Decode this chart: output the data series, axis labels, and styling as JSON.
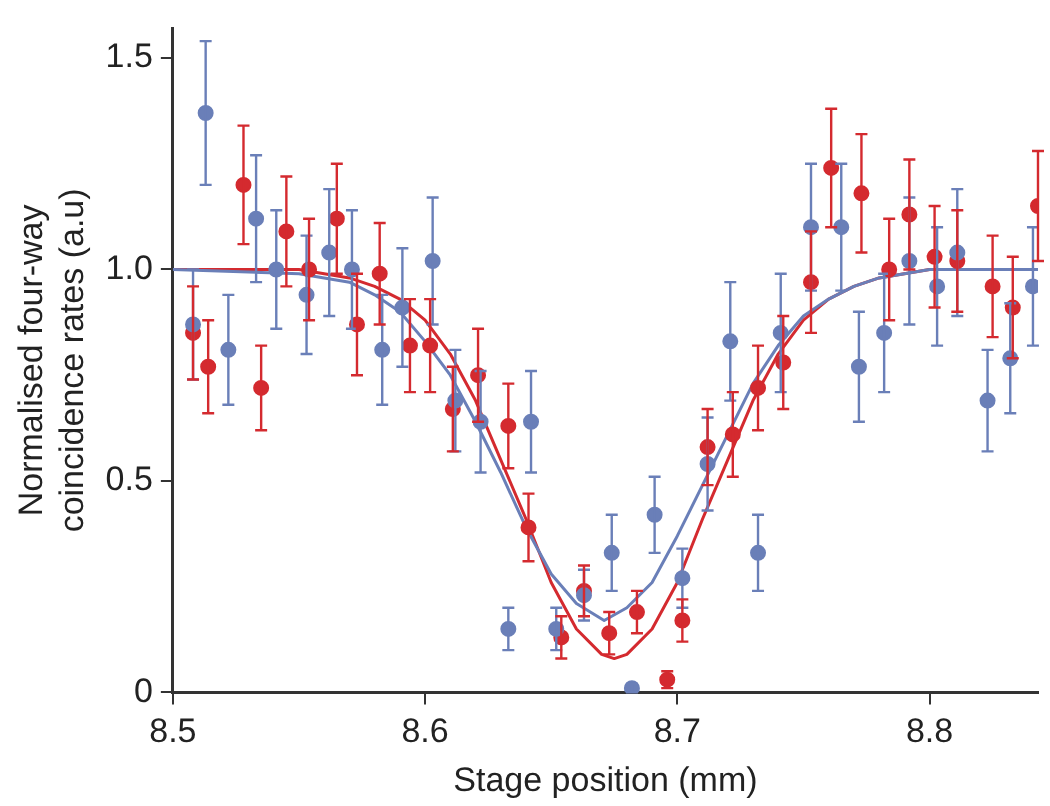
{
  "chart_data": {
    "type": "scatter",
    "xlabel": "Stage position (mm)",
    "ylabel": "Normalised four-way coincidence rates (a.u)",
    "xlim": [
      8.5,
      8.843
    ],
    "ylim": [
      0,
      1.57
    ],
    "xticks": [
      8.5,
      8.6,
      8.7,
      8.8
    ],
    "yticks": [
      0,
      0.5,
      {
        "value": 1,
        "label": "1.0"
      },
      1.5
    ],
    "grid": false,
    "legend": false,
    "marker": "circle",
    "series": [
      {
        "type": "scatter",
        "color": "#6a7fb8",
        "x": [
          8.508,
          8.513,
          8.522,
          8.533,
          8.541,
          8.553,
          8.562,
          8.571,
          8.583,
          8.591,
          8.603,
          8.612,
          8.622,
          8.633,
          8.642,
          8.652,
          8.663,
          8.674,
          8.682,
          8.691,
          8.702,
          8.712,
          8.721,
          8.732,
          8.741,
          8.753,
          8.765,
          8.772,
          8.782,
          8.792,
          8.803,
          8.811,
          8.823,
          8.832,
          8.841
        ],
        "values": [
          0.87,
          1.37,
          0.81,
          1.12,
          1.0,
          0.94,
          1.04,
          1.0,
          0.81,
          0.91,
          1.02,
          0.69,
          0.64,
          0.15,
          0.64,
          0.15,
          0.23,
          0.33,
          0.01,
          0.42,
          0.27,
          0.54,
          0.83,
          0.33,
          0.85,
          1.1,
          1.1,
          0.77,
          0.85,
          1.02,
          0.96,
          1.04,
          0.69,
          0.79,
          0.96
        ],
        "errors": [
          0.13,
          0.17,
          0.13,
          0.15,
          0.14,
          0.14,
          0.15,
          0.14,
          0.13,
          0.14,
          0.15,
          0.12,
          0.12,
          0.05,
          0.12,
          0.05,
          0.06,
          0.09,
          0.01,
          0.09,
          0.07,
          0.11,
          0.14,
          0.09,
          0.14,
          0.15,
          0.15,
          0.13,
          0.14,
          0.15,
          0.14,
          0.15,
          0.12,
          0.13,
          0.14
        ]
      },
      {
        "type": "scatter",
        "color": "#d42a2f",
        "x": [
          8.508,
          8.514,
          8.528,
          8.535,
          8.545,
          8.554,
          8.565,
          8.573,
          8.582,
          8.594,
          8.602,
          8.611,
          8.621,
          8.633,
          8.641,
          8.654,
          8.663,
          8.673,
          8.684,
          8.696,
          8.702,
          8.712,
          8.722,
          8.732,
          8.742,
          8.753,
          8.761,
          8.773,
          8.784,
          8.792,
          8.802,
          8.811,
          8.825,
          8.833,
          8.843
        ],
        "values": [
          0.85,
          0.77,
          1.2,
          0.72,
          1.09,
          1.0,
          1.12,
          0.87,
          0.99,
          0.82,
          0.82,
          0.67,
          0.75,
          0.63,
          0.39,
          0.13,
          0.24,
          0.14,
          0.19,
          0.03,
          0.17,
          0.58,
          0.61,
          0.72,
          0.78,
          0.97,
          1.24,
          1.18,
          1.0,
          1.13,
          1.03,
          1.02,
          0.96,
          0.91,
          1.15
        ],
        "errors": [
          0.11,
          0.11,
          0.14,
          0.1,
          0.13,
          0.12,
          0.13,
          0.12,
          0.12,
          0.11,
          0.11,
          0.1,
          0.11,
          0.1,
          0.08,
          0.05,
          0.06,
          0.05,
          0.05,
          0.02,
          0.05,
          0.09,
          0.1,
          0.1,
          0.11,
          0.12,
          0.14,
          0.14,
          0.12,
          0.13,
          0.12,
          0.12,
          0.12,
          0.12,
          0.13
        ]
      },
      {
        "type": "line",
        "marker": "none",
        "color": "#6a7fb8",
        "x": [
          8.5,
          8.55,
          8.56,
          8.57,
          8.58,
          8.59,
          8.6,
          8.61,
          8.62,
          8.63,
          8.64,
          8.65,
          8.66,
          8.671,
          8.68,
          8.69,
          8.7,
          8.71,
          8.72,
          8.73,
          8.74,
          8.75,
          8.76,
          8.77,
          8.78,
          8.79,
          8.8,
          8.843
        ],
        "values": [
          1.0,
          0.99,
          0.98,
          0.97,
          0.94,
          0.9,
          0.83,
          0.75,
          0.64,
          0.52,
          0.39,
          0.28,
          0.21,
          0.17,
          0.2,
          0.26,
          0.37,
          0.49,
          0.61,
          0.73,
          0.82,
          0.89,
          0.93,
          0.96,
          0.98,
          0.99,
          1.0,
          1.0
        ]
      },
      {
        "type": "line",
        "marker": "none",
        "color": "#d42a2f",
        "x": [
          8.5,
          8.55,
          8.56,
          8.57,
          8.58,
          8.59,
          8.6,
          8.61,
          8.62,
          8.63,
          8.64,
          8.65,
          8.66,
          8.67,
          8.675,
          8.68,
          8.69,
          8.7,
          8.71,
          8.72,
          8.73,
          8.74,
          8.75,
          8.76,
          8.77,
          8.78,
          8.79,
          8.8,
          8.843
        ],
        "values": [
          1.0,
          1.0,
          0.99,
          0.98,
          0.96,
          0.93,
          0.88,
          0.8,
          0.69,
          0.55,
          0.41,
          0.26,
          0.15,
          0.09,
          0.08,
          0.09,
          0.15,
          0.26,
          0.41,
          0.55,
          0.69,
          0.8,
          0.88,
          0.93,
          0.96,
          0.98,
          0.99,
          1.0,
          1.0
        ]
      }
    ]
  }
}
